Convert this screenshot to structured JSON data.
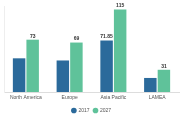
{
  "chart_data": {
    "type": "bar",
    "categories": [
      "North America",
      "Europe",
      "Asia Pacific",
      "LAMEA"
    ],
    "series": [
      {
        "name": "2017",
        "color": "#2b6a9b",
        "values": [
          47,
          44,
          71.85,
          19.6
        ],
        "value_labels": [
          null,
          null,
          "71.85",
          null
        ]
      },
      {
        "name": "2027",
        "color": "#5fc29a",
        "values": [
          73,
          69,
          115,
          31
        ]
      }
    ],
    "ylim": [
      0,
      120
    ],
    "grid": false,
    "legend": "bottom",
    "tick_labels": "x",
    "data_labels": true
  }
}
